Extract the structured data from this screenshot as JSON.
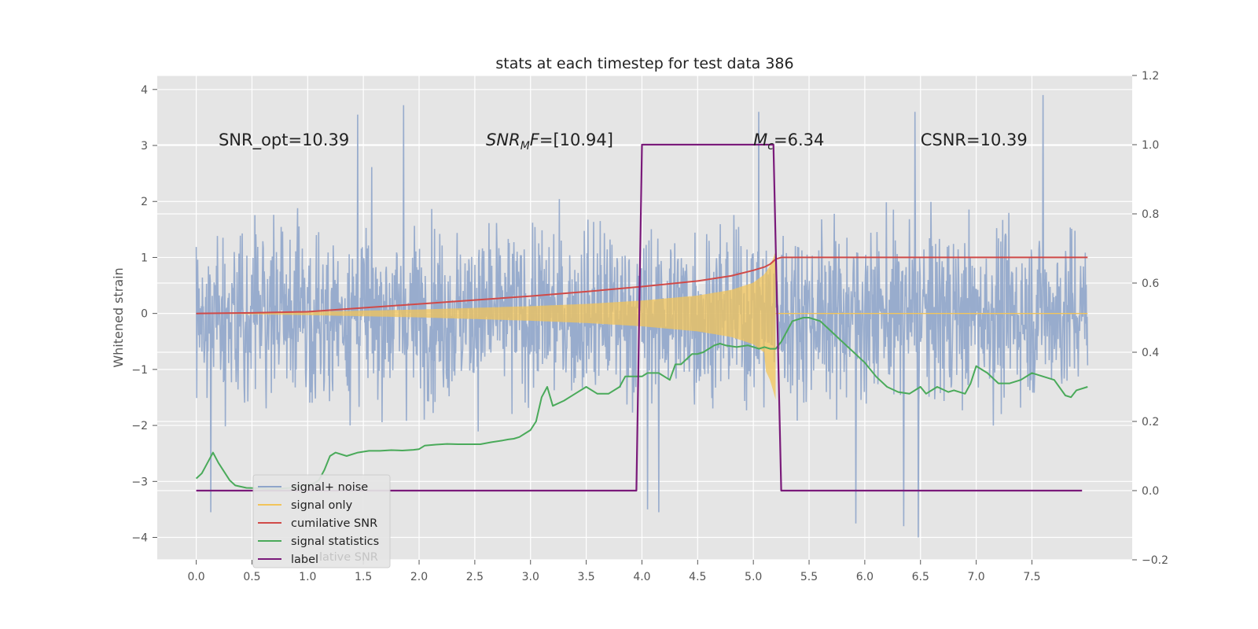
{
  "chart_data": {
    "type": "line",
    "title": "stats at each timestep for test data 386",
    "ylabel": "Whitened strain",
    "xlabel": "",
    "xlim": [
      -0.35,
      8.4
    ],
    "ylim": [
      -4.4,
      4.25
    ],
    "y2lim": [
      -0.2,
      1.2
    ],
    "xticks": [
      0.0,
      0.5,
      1.0,
      1.5,
      2.0,
      2.5,
      3.0,
      3.5,
      4.0,
      4.5,
      5.0,
      5.5,
      6.0,
      6.5,
      7.0,
      7.5
    ],
    "xtick_labels": [
      "0.0",
      "0.5",
      "1.0",
      "1.5",
      "2.0",
      "2.5",
      "3.0",
      "3.5",
      "4.0",
      "4.5",
      "5.0",
      "5.5",
      "6.0",
      "6.5",
      "7.0",
      "7.5"
    ],
    "yticks": [
      4,
      3,
      2,
      1,
      0,
      -1,
      -2,
      -3,
      -4
    ],
    "ytick_labels": [
      "4",
      "3",
      "2",
      "1",
      "0",
      "−1",
      "−2",
      "−3",
      "−4"
    ],
    "y2ticks": [
      1.2,
      1.0,
      0.8,
      0.6,
      0.4,
      0.2,
      0.0,
      -0.2
    ],
    "y2tick_labels": [
      "1.2",
      "1.0",
      "0.8",
      "0.6",
      "0.4",
      "0.2",
      "0.0",
      "−0.2"
    ],
    "grid": true,
    "annotations": [
      {
        "text": "SNR_opt=10.39",
        "x": 0.2,
        "y": 3.0
      },
      {
        "text": "SNR_MF=[10.94]",
        "x": 2.6,
        "y": 3.0
      },
      {
        "text": "M_c=6.34",
        "x": 5.0,
        "y": 3.0
      },
      {
        "text": "CSNR=10.39",
        "x": 6.5,
        "y": 3.0
      }
    ],
    "annotation_parts": [
      {
        "main": "SNR_opt=10.39"
      },
      {
        "a": "SNR",
        "sub": "M",
        "b": "F",
        "c": "=[10.94]"
      },
      {
        "a": "M",
        "sub": "c",
        "c": "=6.34"
      },
      {
        "main": "CSNR=10.39"
      }
    ],
    "legend": {
      "position": "lower-left",
      "entries": [
        {
          "label": "signal+ noise",
          "color": "#8fa5ca"
        },
        {
          "label": "signal only",
          "color": "#f2c45a"
        },
        {
          "label": "cumilative SNR",
          "color": "#d04a48"
        },
        {
          "label": "signal statistics",
          "color": "#4aaa5a"
        },
        {
          "label": "label",
          "color": "#7a1a7a"
        }
      ],
      "ghost_text": "lative SNR"
    },
    "series": [
      {
        "name": "signal+ noise",
        "axis": "left",
        "color": "#8fa5ca",
        "x_range": [
          0.0,
          8.0
        ],
        "envelope_mean": 2.2,
        "notable_peaks": [
          {
            "x": 1.45,
            "y": 3.55
          },
          {
            "x": 1.86,
            "y": 3.72
          },
          {
            "x": 5.05,
            "y": 3.6
          },
          {
            "x": 6.45,
            "y": 3.6
          },
          {
            "x": 7.6,
            "y": 3.9
          },
          {
            "x": 0.13,
            "y": -3.55
          },
          {
            "x": 4.05,
            "y": -3.5
          },
          {
            "x": 4.15,
            "y": -3.55
          },
          {
            "x": 5.92,
            "y": -3.75
          },
          {
            "x": 6.35,
            "y": -3.8
          },
          {
            "x": 6.48,
            "y": -4.0
          }
        ]
      },
      {
        "name": "signal only",
        "axis": "left",
        "color": "#f2c45a",
        "x": [
          0.0,
          1.0,
          2.0,
          3.0,
          3.5,
          4.0,
          4.5,
          4.8,
          5.0,
          5.1,
          5.15,
          5.18,
          5.2
        ],
        "envelope": [
          0.0,
          0.03,
          0.07,
          0.13,
          0.17,
          0.23,
          0.32,
          0.42,
          0.55,
          0.7,
          0.85,
          1.0,
          1.1
        ],
        "post_merger": 0.0
      },
      {
        "name": "cumilative SNR",
        "axis": "left",
        "color": "#d04a48",
        "x": [
          0.0,
          0.5,
          1.0,
          1.5,
          2.0,
          2.5,
          3.0,
          3.5,
          4.0,
          4.5,
          4.8,
          5.0,
          5.1,
          5.15,
          5.2,
          5.25,
          8.0
        ],
        "y": [
          0.0,
          0.01,
          0.03,
          0.1,
          0.17,
          0.24,
          0.31,
          0.39,
          0.48,
          0.58,
          0.67,
          0.77,
          0.83,
          0.88,
          0.97,
          1.0,
          1.0
        ]
      },
      {
        "name": "signal statistics",
        "axis": "right",
        "color": "#4aaa5a",
        "x": [
          0.0,
          0.05,
          0.1,
          0.15,
          0.2,
          0.3,
          0.35,
          0.45,
          0.55,
          0.65,
          0.75,
          0.85,
          0.95,
          1.05,
          1.1,
          1.15,
          1.2,
          1.25,
          1.35,
          1.45,
          1.55,
          1.65,
          1.75,
          1.85,
          1.95,
          2.0,
          2.05,
          2.15,
          2.25,
          2.35,
          2.45,
          2.55,
          2.65,
          2.75,
          2.8,
          2.85,
          2.9,
          2.95,
          3.0,
          3.05,
          3.1,
          3.15,
          3.2,
          3.3,
          3.4,
          3.5,
          3.6,
          3.7,
          3.8,
          3.85,
          3.9,
          3.95,
          4.0,
          4.05,
          4.15,
          4.25,
          4.3,
          4.35,
          4.45,
          4.5,
          4.55,
          4.65,
          4.7,
          4.75,
          4.85,
          4.95,
          5.05,
          5.1,
          5.15,
          5.2,
          5.25,
          5.3,
          5.35,
          5.45,
          5.5,
          5.6,
          5.7,
          5.8,
          5.9,
          6.0,
          6.1,
          6.2,
          6.3,
          6.4,
          6.45,
          6.5,
          6.55,
          6.65,
          6.75,
          6.8,
          6.9,
          6.95,
          7.0,
          7.1,
          7.2,
          7.3,
          7.4,
          7.5,
          7.6,
          7.7,
          7.8,
          7.85,
          7.9,
          8.0
        ],
        "y": [
          0.035,
          0.05,
          0.08,
          0.11,
          0.08,
          0.03,
          0.015,
          0.008,
          0.007,
          0.005,
          0.006,
          0.008,
          0.015,
          0.02,
          0.03,
          0.06,
          0.1,
          0.11,
          0.1,
          0.11,
          0.115,
          0.115,
          0.117,
          0.116,
          0.118,
          0.12,
          0.13,
          0.133,
          0.135,
          0.134,
          0.134,
          0.134,
          0.14,
          0.145,
          0.148,
          0.15,
          0.155,
          0.165,
          0.175,
          0.2,
          0.27,
          0.3,
          0.245,
          0.26,
          0.28,
          0.3,
          0.28,
          0.28,
          0.3,
          0.33,
          0.33,
          0.33,
          0.33,
          0.34,
          0.34,
          0.32,
          0.365,
          0.365,
          0.395,
          0.395,
          0.4,
          0.42,
          0.425,
          0.42,
          0.415,
          0.42,
          0.41,
          0.415,
          0.41,
          0.41,
          0.43,
          0.46,
          0.49,
          0.5,
          0.5,
          0.49,
          0.46,
          0.43,
          0.4,
          0.37,
          0.33,
          0.3,
          0.285,
          0.28,
          0.29,
          0.3,
          0.28,
          0.3,
          0.285,
          0.29,
          0.28,
          0.31,
          0.36,
          0.34,
          0.31,
          0.31,
          0.32,
          0.34,
          0.33,
          0.32,
          0.275,
          0.27,
          0.29,
          0.3
        ]
      },
      {
        "name": "label",
        "axis": "right",
        "color": "#7a1a7a",
        "x": [
          0.0,
          3.95,
          4.0,
          5.18,
          5.25,
          7.95
        ],
        "y": [
          0.0,
          0.0,
          1.0,
          1.0,
          0.0,
          0.0
        ]
      }
    ]
  }
}
